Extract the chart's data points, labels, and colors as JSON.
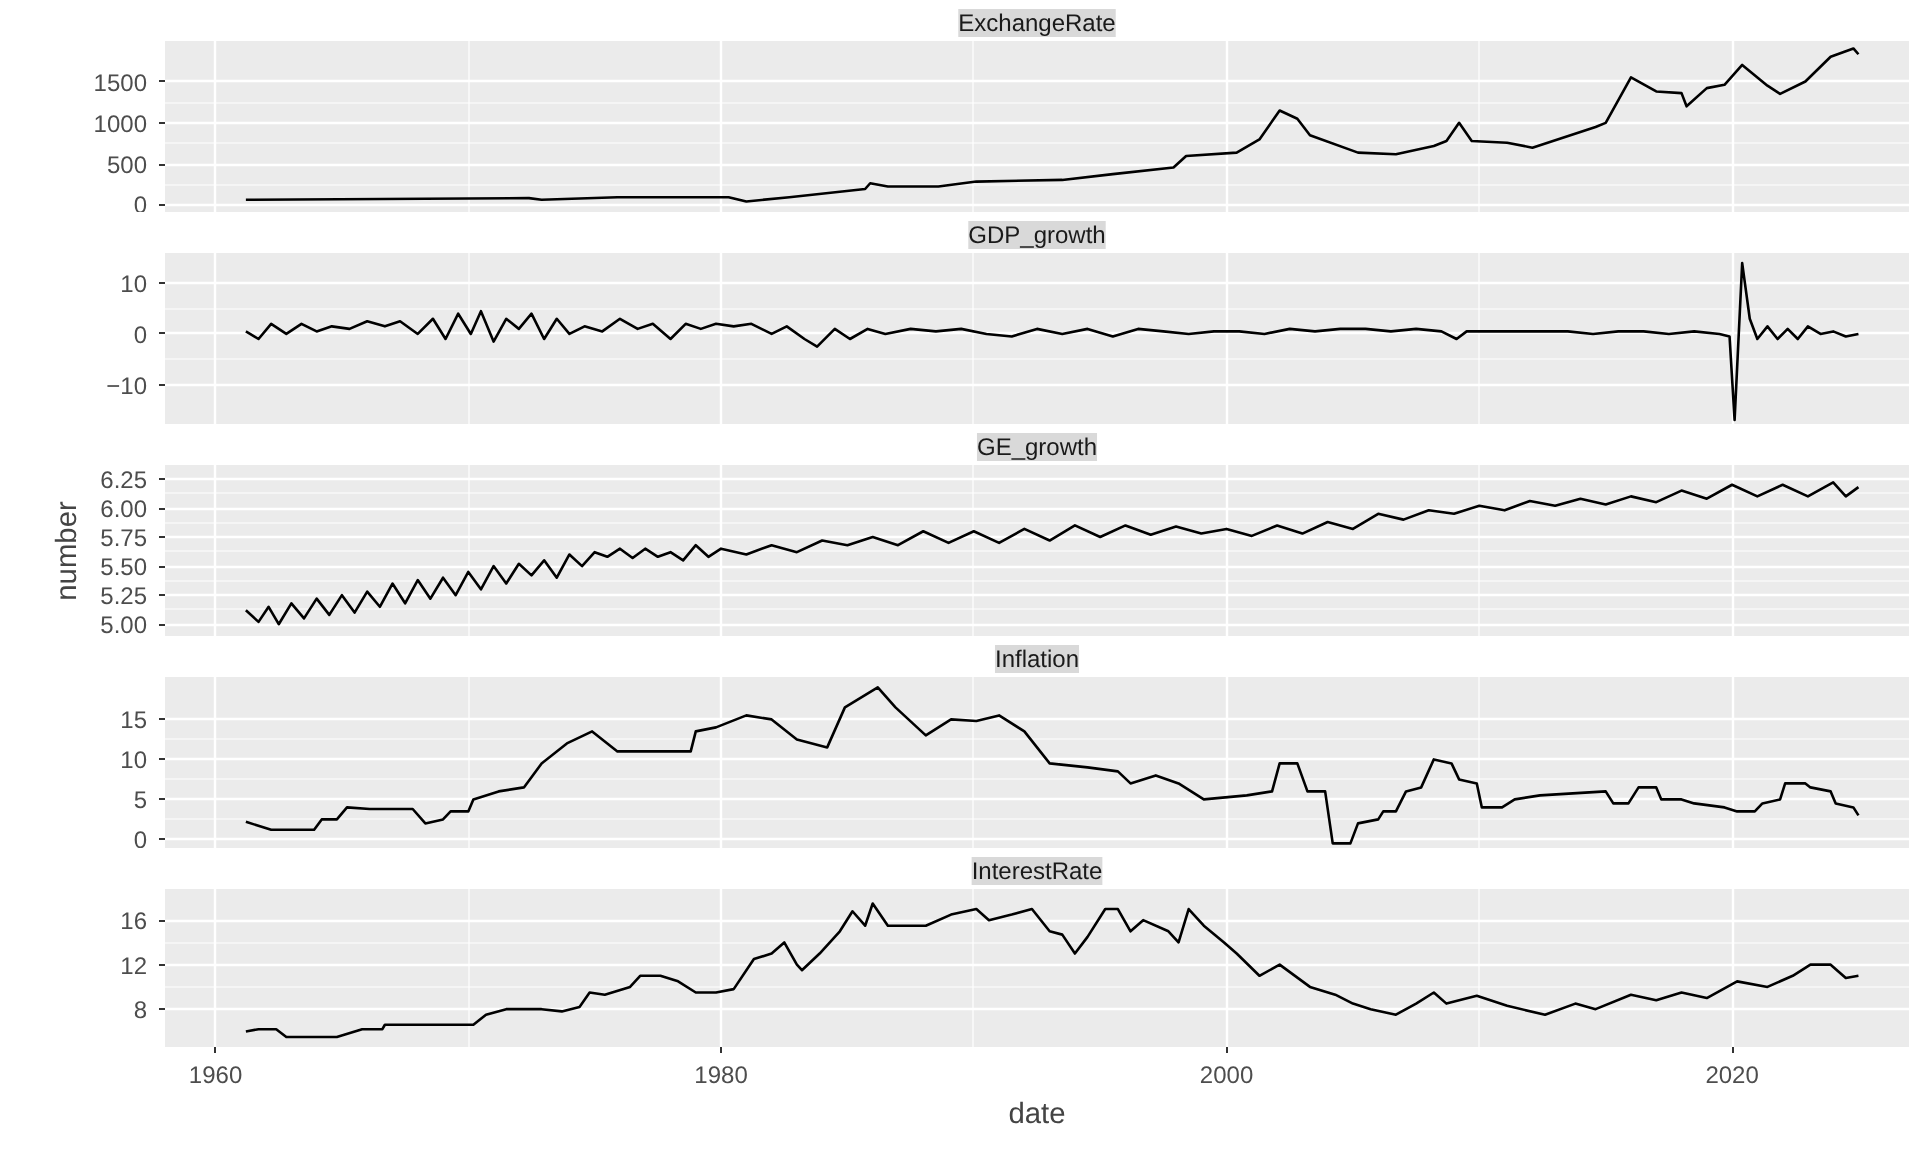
{
  "chart_data": [
    {
      "type": "line",
      "title": "ExchangeRate",
      "xlim": [
        1958,
        2027
      ],
      "xticks": [
        1960,
        1980,
        2000,
        2020
      ],
      "ylim": [
        -90,
        1990
      ],
      "yticks": [
        0,
        500,
        1000,
        1500
      ],
      "grid": true,
      "tick_labels": "y",
      "series": [
        {
          "color": "#000000",
          "x": [
            1961.2,
            1972.4,
            1972.9,
            1975.9,
            1980.3,
            1981.0,
            1982.7,
            1985.7,
            1985.9,
            1986.6,
            1988.6,
            1990.1,
            1993.5,
            1995.5,
            1997.9,
            1998.4,
            2000.4,
            2001.3,
            2002.1,
            2002.8,
            2003.3,
            2005.2,
            2006.7,
            2008.2,
            2008.7,
            2009.2,
            2009.7,
            2011.1,
            2012.1,
            2014.6,
            2015.0,
            2016.0,
            2017.0,
            2018.0,
            2018.2,
            2019.0,
            2019.7,
            2020.4,
            2021.4,
            2021.9,
            2022.9,
            2023.9,
            2024.8,
            2025.0
          ],
          "values": [
            70,
            90,
            70,
            100,
            100,
            50,
            100,
            200,
            270,
            230,
            230,
            290,
            310,
            380,
            460,
            600,
            640,
            800,
            1150,
            1050,
            850,
            640,
            620,
            720,
            780,
            1000,
            780,
            760,
            700,
            950,
            1000,
            1550,
            1380,
            1360,
            1200,
            1420,
            1460,
            1700,
            1450,
            1350,
            1500,
            1800,
            1900,
            1830
          ]
        }
      ]
    },
    {
      "type": "line",
      "title": "GDP_growth",
      "xlim": [
        1958,
        2027
      ],
      "xticks": [
        1960,
        1980,
        2000,
        2020
      ],
      "ylim": [
        -18,
        16
      ],
      "yticks": [
        -10,
        0,
        10
      ],
      "grid": true,
      "tick_labels": "y",
      "series": [
        {
          "color": "#000000",
          "x": [
            1961.2,
            1961.7,
            1962.2,
            1962.8,
            1963.4,
            1964,
            1964.6,
            1965.3,
            1966,
            1966.7,
            1967.3,
            1968,
            1968.6,
            1969.1,
            1969.6,
            1970.1,
            1970.5,
            1971,
            1971.5,
            1972,
            1972.5,
            1973,
            1973.5,
            1974,
            1974.6,
            1975.3,
            1976,
            1976.7,
            1977.3,
            1978,
            1978.6,
            1979.2,
            1979.8,
            1980.5,
            1981.2,
            1982,
            1982.6,
            1983.3,
            1983.8,
            1984.5,
            1985.1,
            1985.8,
            1986.5,
            1987.5,
            1988.5,
            1989.5,
            1990.5,
            1991.5,
            1992.5,
            1993.5,
            1994.5,
            1995.5,
            1996.5,
            1997.5,
            1998.5,
            1999.5,
            2000.5,
            2001.5,
            2002.5,
            2003.5,
            2004.5,
            2005.5,
            2006.5,
            2007.5,
            2008.5,
            2009.1,
            2009.5,
            2010.5,
            2011.5,
            2012.5,
            2013.5,
            2014.5,
            2015.5,
            2016.5,
            2017.5,
            2018.5,
            2019.5,
            2019.9,
            2020.1,
            2020.4,
            2020.7,
            2021,
            2021.4,
            2021.8,
            2022.2,
            2022.6,
            2023,
            2023.5,
            2024,
            2024.5,
            2025
          ],
          "values": [
            0.5,
            -1,
            2,
            0,
            2,
            0.5,
            1.5,
            1,
            2.5,
            1.5,
            2.5,
            0,
            3,
            -1,
            4,
            0,
            4.5,
            -1.5,
            3,
            1,
            4,
            -1,
            3,
            0,
            1.5,
            0.5,
            3,
            1,
            2,
            -1,
            2,
            1,
            2,
            1.5,
            2,
            0,
            1.5,
            -1,
            -2.5,
            1,
            -1,
            1,
            0,
            1,
            0.5,
            1,
            0,
            -0.5,
            1,
            0,
            1,
            -0.5,
            1,
            0.5,
            0,
            0.5,
            0.5,
            0,
            1,
            0.5,
            1,
            1,
            0.5,
            1,
            0.5,
            -1,
            0.5,
            0.5,
            0.5,
            0.5,
            0.5,
            0,
            0.5,
            0.5,
            0,
            0.5,
            0,
            -0.5,
            -17,
            14,
            3,
            -1,
            1.5,
            -1,
            1,
            -1,
            1.5,
            0,
            0.5,
            -0.5,
            0
          ]
        }
      ]
    },
    {
      "type": "line",
      "title": "GE_growth",
      "ylabel": "number",
      "xlim": [
        1958,
        2027
      ],
      "xticks": [
        1960,
        1980,
        2000,
        2020
      ],
      "ylim": [
        4.89,
        6.37
      ],
      "yticks": [
        {
          "value": 5.0,
          "label": "5.00"
        },
        {
          "value": 5.25,
          "label": "5.25"
        },
        {
          "value": 5.5,
          "label": "5.50"
        },
        {
          "value": 5.75,
          "label": "5.75"
        },
        {
          "value": 6.0,
          "label": "6.00"
        },
        {
          "value": 6.25,
          "label": "6.25"
        }
      ],
      "grid": true,
      "tick_labels": "y",
      "series": [
        {
          "color": "#000000",
          "x": [
            1961.2,
            1961.7,
            1962.1,
            1962.5,
            1963,
            1963.5,
            1964,
            1964.5,
            1965,
            1965.5,
            1966,
            1966.5,
            1967,
            1967.5,
            1968,
            1968.5,
            1969,
            1969.5,
            1970,
            1970.5,
            1971,
            1971.5,
            1972,
            1972.5,
            1973,
            1973.5,
            1974,
            1974.5,
            1975,
            1975.5,
            1976,
            1976.5,
            1977,
            1977.5,
            1978,
            1978.5,
            1979,
            1979.5,
            1980,
            1981,
            1982,
            1983,
            1984,
            1985,
            1986,
            1987,
            1988,
            1989,
            1990,
            1991,
            1992,
            1993,
            1994,
            1995,
            1996,
            1997,
            1998,
            1999,
            2000,
            2001,
            2002,
            2003,
            2004,
            2005,
            2006,
            2007,
            2008,
            2009,
            2010,
            2011,
            2012,
            2013,
            2014,
            2015,
            2016,
            2017,
            2018,
            2019,
            2020,
            2021,
            2022,
            2023,
            2024,
            2024.5,
            2025
          ],
          "values": [
            5.12,
            5.02,
            5.15,
            5.0,
            5.18,
            5.05,
            5.22,
            5.08,
            5.25,
            5.1,
            5.28,
            5.15,
            5.35,
            5.18,
            5.38,
            5.22,
            5.4,
            5.25,
            5.45,
            5.3,
            5.5,
            5.35,
            5.52,
            5.42,
            5.55,
            5.4,
            5.6,
            5.5,
            5.62,
            5.58,
            5.65,
            5.57,
            5.65,
            5.58,
            5.62,
            5.55,
            5.68,
            5.58,
            5.65,
            5.6,
            5.68,
            5.62,
            5.72,
            5.68,
            5.75,
            5.68,
            5.8,
            5.7,
            5.8,
            5.7,
            5.82,
            5.72,
            5.85,
            5.75,
            5.85,
            5.77,
            5.84,
            5.78,
            5.82,
            5.76,
            5.85,
            5.78,
            5.88,
            5.82,
            5.95,
            5.9,
            5.98,
            5.95,
            6.02,
            5.98,
            6.06,
            6.02,
            6.08,
            6.03,
            6.1,
            6.05,
            6.15,
            6.08,
            6.2,
            6.1,
            6.2,
            6.1,
            6.22,
            6.1,
            6.18
          ]
        }
      ]
    },
    {
      "type": "line",
      "title": "Inflation",
      "xlim": [
        1958,
        2027
      ],
      "xticks": [
        1960,
        1980,
        2000,
        2020
      ],
      "ylim": [
        -1.2,
        20.3
      ],
      "yticks": [
        0,
        5,
        10,
        15
      ],
      "grid": true,
      "tick_labels": "y",
      "series": [
        {
          "color": "#000000",
          "x": [
            1961.2,
            1962.2,
            1963.9,
            1964.2,
            1964.8,
            1965.2,
            1966.1,
            1967.8,
            1968.3,
            1969.0,
            1969.3,
            1970.0,
            1970.2,
            1971.2,
            1972.2,
            1972.9,
            1973.9,
            1974.9,
            1975.9,
            1978.8,
            1979.0,
            1979.8,
            1981.0,
            1982.0,
            1983.0,
            1984.2,
            1984.9,
            1986.2,
            1986.9,
            1988.1,
            1989.1,
            1990.1,
            1991.0,
            1992.0,
            1993.0,
            1994.5,
            1995.7,
            1996.2,
            1997.2,
            1998.1,
            1999.1,
            2000.8,
            2001.8,
            2002.1,
            2002.8,
            2003.2,
            2003.9,
            2004.2,
            2004.9,
            2005.2,
            2006.0,
            2006.2,
            2006.7,
            2007.1,
            2007.7,
            2008.2,
            2008.9,
            2009.2,
            2009.9,
            2010.1,
            2010.9,
            2011.4,
            2012.4,
            2015.0,
            2015.3,
            2015.9,
            2016.3,
            2017.0,
            2017.2,
            2018.0,
            2018.5,
            2019.7,
            2020.2,
            2020.9,
            2021.2,
            2021.9,
            2022.1,
            2022.9,
            2023.1,
            2023.9,
            2024.1,
            2024.8,
            2025.0
          ],
          "values": [
            2.2,
            1.2,
            1.2,
            2.5,
            2.5,
            4,
            3.8,
            3.8,
            2,
            2.5,
            3.5,
            3.5,
            5,
            6,
            6.5,
            9.5,
            12,
            13.5,
            11,
            11,
            13.5,
            14,
            15.5,
            15,
            12.5,
            11.5,
            16.5,
            19,
            16.5,
            13,
            15,
            14.8,
            15.5,
            13.5,
            9.5,
            9,
            8.5,
            7,
            8,
            7,
            5,
            5.5,
            6,
            9.5,
            9.5,
            6,
            6,
            -0.5,
            -0.5,
            2,
            2.5,
            3.5,
            3.5,
            6,
            6.5,
            10,
            9.5,
            7.5,
            7,
            4,
            4,
            5,
            5.5,
            6,
            4.5,
            4.5,
            6.5,
            6.5,
            5,
            5,
            4.5,
            4,
            3.5,
            3.5,
            4.5,
            5,
            7,
            7,
            6.5,
            6,
            4.5,
            4,
            3
          ]
        }
      ]
    },
    {
      "type": "line",
      "title": "InterestRate",
      "xlabel": "date",
      "xlim": [
        1958,
        2027
      ],
      "xticks": [
        1960,
        1980,
        2000,
        2020
      ],
      "ylim": [
        4.6,
        18.8
      ],
      "yticks": [
        8,
        12,
        16
      ],
      "grid": true,
      "series": [
        {
          "color": "#000000",
          "x": [
            1961.2,
            1961.7,
            1962.4,
            1962.8,
            1964.8,
            1965.8,
            1966.6,
            1966.7,
            1970.2,
            1970.7,
            1971.5,
            1972.9,
            1973.7,
            1974.4,
            1974.8,
            1975.4,
            1976.4,
            1976.8,
            1977.6,
            1978.3,
            1979.0,
            1979.8,
            1980.5,
            1981.3,
            1982.0,
            1982.5,
            1983.0,
            1983.2,
            1983.9,
            1984.7,
            1985.2,
            1985.7,
            1986.0,
            1986.6,
            1988.1,
            1989.1,
            1990.1,
            1990.6,
            1991.5,
            1992.3,
            1993.0,
            1993.5,
            1994.0,
            1994.5,
            1995.2,
            1995.7,
            1996.2,
            1996.7,
            1997.7,
            1998.1,
            1998.5,
            1999.1,
            1999.9,
            2000.4,
            2001.3,
            2002.1,
            2003.3,
            2004.3,
            2005.0,
            2005.7,
            2006.7,
            2007.5,
            2008.2,
            2008.7,
            2009.9,
            2011.1,
            2012.6,
            2013.8,
            2014.6,
            2016.0,
            2017.0,
            2018.0,
            2019.0,
            2020.2,
            2021.4,
            2022.4,
            2023.1,
            2023.9,
            2024.5,
            2025.0
          ],
          "values": [
            6,
            6.2,
            6.2,
            5.5,
            5.5,
            6.2,
            6.2,
            6.6,
            6.6,
            7.5,
            8,
            8,
            7.8,
            8.2,
            9.5,
            9.3,
            10,
            11,
            11,
            10.5,
            9.5,
            9.5,
            9.8,
            12.5,
            13,
            14,
            12,
            11.5,
            13,
            15,
            16.8,
            15.5,
            17.5,
            15.5,
            15.5,
            16.5,
            17,
            16,
            16.5,
            17,
            15,
            14.7,
            13,
            14.5,
            17,
            17,
            15,
            16,
            15,
            14,
            17,
            15.5,
            14,
            13,
            11,
            12,
            10,
            9.3,
            8.5,
            8,
            7.5,
            8.5,
            9.5,
            8.5,
            9.2,
            8.3,
            7.5,
            8.5,
            8,
            9.3,
            8.8,
            9.5,
            9,
            10.5,
            10,
            11,
            12,
            12,
            10.8,
            11
          ]
        }
      ]
    }
  ]
}
